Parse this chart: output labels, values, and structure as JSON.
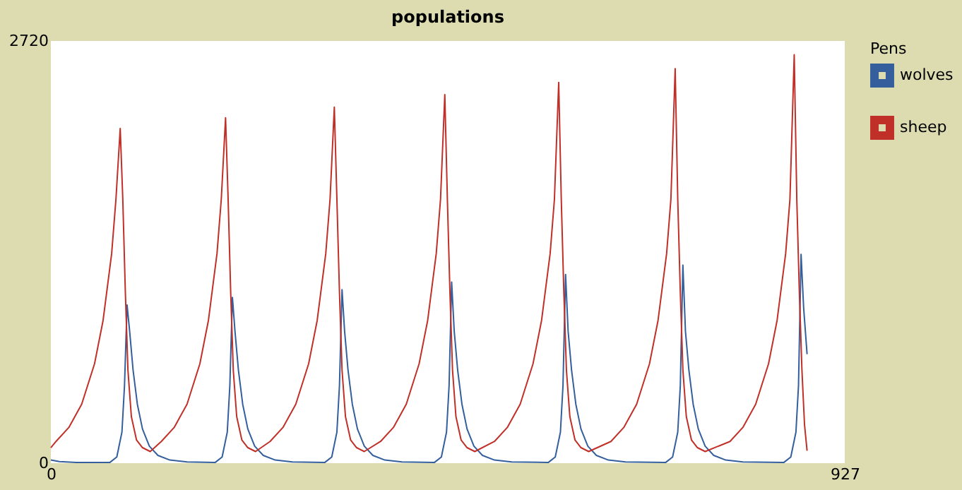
{
  "chart_data": {
    "type": "line",
    "title": "populations",
    "legend_title": "Pens",
    "legend": "top right",
    "grid": false,
    "marker": "none",
    "line_style": "solid",
    "xlim": [
      0,
      927
    ],
    "xticks": [
      0,
      927
    ],
    "ylim": [
      0,
      2720
    ],
    "yticks": [
      0,
      2720
    ],
    "series": [
      {
        "name": "wolves",
        "color": "#345f9c",
        "x": [
          0,
          10,
          30,
          69,
          77,
          83,
          86,
          89,
          92,
          96,
          101,
          107,
          115,
          125,
          139,
          159,
          192,
          200,
          206,
          209,
          212,
          215,
          219,
          224,
          230,
          238,
          248,
          262,
          282,
          320,
          328,
          334,
          337,
          340,
          343,
          347,
          352,
          358,
          366,
          376,
          390,
          410,
          448,
          456,
          462,
          465,
          468,
          471,
          475,
          480,
          486,
          494,
          504,
          518,
          538,
          581,
          589,
          595,
          598,
          601,
          604,
          608,
          613,
          619,
          627,
          637,
          651,
          671,
          718,
          726,
          732,
          735,
          738,
          741,
          745,
          750,
          756,
          764,
          774,
          788,
          808,
          856,
          864,
          870,
          873,
          876,
          879,
          883
        ],
        "values": [
          20,
          10,
          5,
          5,
          40,
          200,
          500,
          1019,
          850,
          600,
          380,
          220,
          110,
          50,
          20,
          8,
          5,
          40,
          200,
          500,
          1068,
          850,
          600,
          380,
          220,
          110,
          50,
          20,
          8,
          5,
          40,
          200,
          500,
          1118,
          850,
          600,
          380,
          220,
          110,
          50,
          20,
          8,
          5,
          40,
          200,
          500,
          1167,
          850,
          600,
          380,
          220,
          110,
          50,
          20,
          8,
          5,
          40,
          200,
          500,
          1216,
          850,
          600,
          380,
          220,
          110,
          50,
          20,
          8,
          5,
          40,
          200,
          500,
          1276,
          850,
          600,
          380,
          220,
          110,
          50,
          20,
          8,
          5,
          40,
          200,
          500,
          1345,
          1000,
          702
        ]
      },
      {
        "name": "sheep",
        "color": "#c03028",
        "x": [
          0,
          6,
          21,
          36,
          51,
          61,
          71,
          76,
          81,
          84,
          87,
          90,
          94,
          100,
          107,
          116,
          129,
          144,
          159,
          174,
          184,
          194,
          199,
          204,
          207,
          210,
          213,
          217,
          223,
          230,
          239,
          256,
          271,
          286,
          301,
          311,
          321,
          326,
          331,
          334,
          337,
          340,
          344,
          350,
          357,
          366,
          385,
          400,
          415,
          430,
          440,
          450,
          455,
          460,
          463,
          466,
          469,
          473,
          479,
          486,
          495,
          518,
          533,
          548,
          563,
          573,
          583,
          588,
          593,
          596,
          599,
          602,
          606,
          612,
          619,
          628,
          654,
          669,
          684,
          699,
          709,
          719,
          724,
          729,
          732,
          735,
          738,
          742,
          748,
          755,
          764,
          793,
          808,
          823,
          838,
          848,
          858,
          863,
          868,
          871,
          874,
          877,
          880,
          883
        ],
        "values": [
          100,
          140,
          230,
          380,
          640,
          920,
          1350,
          1700,
          2156,
          1700,
          1100,
          600,
          300,
          150,
          100,
          75,
          140,
          230,
          380,
          640,
          920,
          1350,
          1700,
          2225,
          1700,
          1100,
          600,
          300,
          150,
          100,
          75,
          140,
          230,
          380,
          640,
          920,
          1350,
          1700,
          2294,
          1700,
          1100,
          600,
          300,
          150,
          100,
          75,
          140,
          230,
          380,
          640,
          920,
          1350,
          1700,
          2374,
          1700,
          1100,
          600,
          300,
          150,
          100,
          75,
          140,
          230,
          380,
          640,
          920,
          1350,
          1700,
          2453,
          1700,
          1100,
          600,
          300,
          150,
          100,
          75,
          140,
          230,
          380,
          640,
          920,
          1350,
          1700,
          2542,
          1700,
          1100,
          600,
          300,
          150,
          100,
          75,
          140,
          230,
          380,
          640,
          920,
          1350,
          1700,
          2631,
          1700,
          1100,
          600,
          250,
          80
        ]
      }
    ]
  }
}
